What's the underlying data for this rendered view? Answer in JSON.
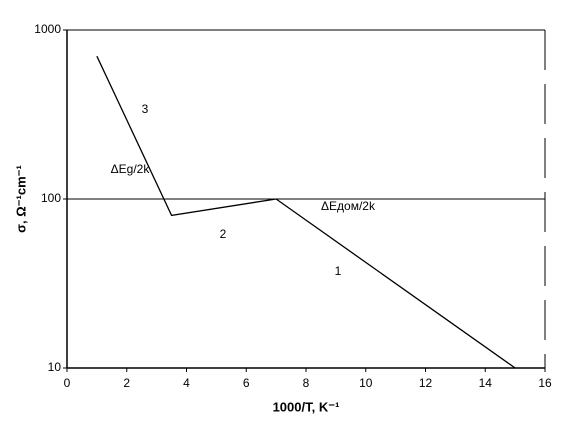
{
  "chart_data": {
    "type": "line",
    "x_label": "1000/T, K⁻¹",
    "y_label": "σ, Ω⁻¹cm⁻¹",
    "x": [
      1,
      3.5,
      7,
      15
    ],
    "values": [
      700,
      80,
      100,
      10
    ],
    "color": "#000000",
    "xlim": [
      0,
      16
    ],
    "xticks": [
      0,
      2,
      4,
      6,
      8,
      10,
      12,
      14,
      16
    ],
    "ylim": [
      10,
      1000
    ],
    "yticks": [
      10,
      100,
      1000
    ],
    "y_scale": "log",
    "grid": true,
    "annotations": [
      "3",
      "ΔEg/2k",
      "2",
      "ΔEдом/2k",
      "1"
    ]
  }
}
